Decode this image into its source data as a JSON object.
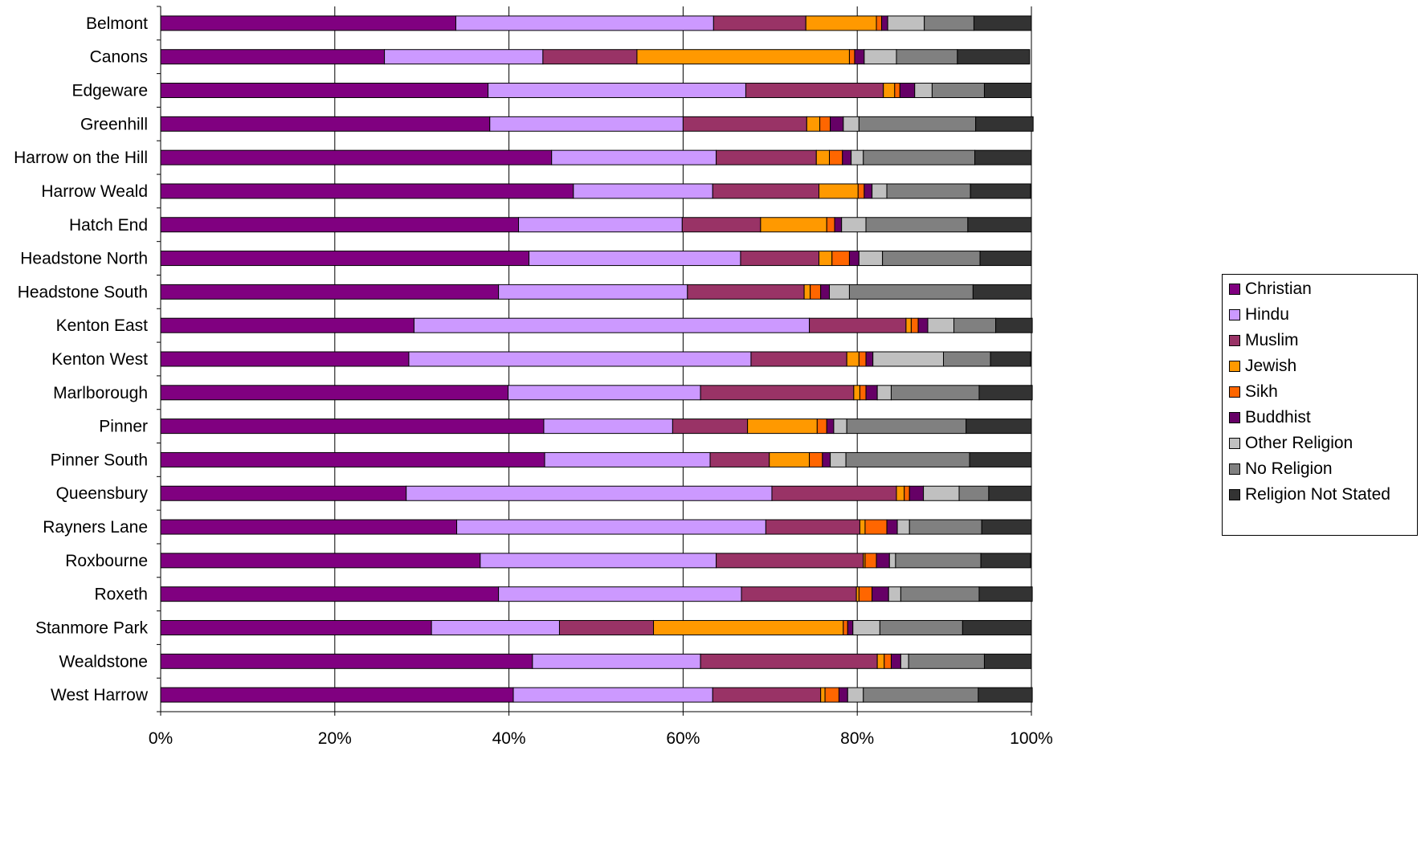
{
  "chart_data": {
    "type": "bar",
    "orientation": "horizontal",
    "stacked": "percent",
    "categories": [
      "Belmont",
      "Canons",
      "Edgeware",
      "Greenhill",
      "Harrow on the Hill",
      "Harrow Weald",
      "Hatch End",
      "Headstone North",
      "Headstone South",
      "Kenton East",
      "Kenton West",
      "Marlborough",
      "Pinner ",
      "Pinner South",
      "Queensbury",
      "Rayners Lane",
      "Roxbourne",
      "Roxeth",
      "Stanmore Park",
      "Wealdstone",
      "West Harrow"
    ],
    "series": [
      {
        "name": "Christian",
        "color": "#800080",
        "values": [
          33.9,
          25.7,
          37.6,
          37.8,
          44.9,
          47.4,
          41.1,
          42.3,
          38.8,
          29.1,
          28.5,
          39.9,
          44.0,
          44.1,
          28.2,
          34.0,
          36.7,
          38.8,
          31.1,
          42.7,
          40.5
        ]
      },
      {
        "name": "Hindu",
        "color": "#CC99FF",
        "values": [
          29.6,
          18.2,
          29.6,
          22.2,
          18.9,
          16.0,
          18.8,
          24.3,
          21.7,
          45.4,
          39.3,
          22.1,
          14.8,
          19.0,
          42.0,
          35.5,
          27.1,
          27.9,
          14.7,
          19.3,
          22.9
        ]
      },
      {
        "name": "Muslim",
        "color": "#993366",
        "values": [
          10.6,
          10.8,
          15.8,
          14.2,
          11.5,
          12.2,
          9.0,
          9.0,
          13.4,
          11.1,
          11.0,
          17.6,
          8.6,
          6.8,
          14.3,
          10.8,
          16.9,
          13.2,
          10.8,
          20.3,
          12.4
        ]
      },
      {
        "name": "Jewish",
        "color": "#FF9900",
        "values": [
          8.1,
          24.4,
          1.3,
          1.5,
          1.5,
          4.5,
          7.6,
          1.5,
          0.7,
          0.6,
          1.4,
          0.7,
          8.0,
          4.6,
          0.9,
          0.6,
          0.2,
          0.3,
          21.8,
          0.8,
          0.5
        ]
      },
      {
        "name": "Sikh",
        "color": "#FF6600",
        "values": [
          0.6,
          0.6,
          0.6,
          1.2,
          1.5,
          0.7,
          0.9,
          2.0,
          1.2,
          0.8,
          0.8,
          0.7,
          1.1,
          1.5,
          0.6,
          2.5,
          1.3,
          1.5,
          0.5,
          0.8,
          1.6
        ]
      },
      {
        "name": "Buddhist",
        "color": "#660066",
        "values": [
          0.7,
          1.1,
          1.7,
          1.5,
          1.0,
          0.9,
          0.8,
          1.1,
          1.0,
          1.1,
          0.8,
          1.3,
          0.8,
          0.9,
          1.6,
          1.2,
          1.5,
          1.9,
          0.6,
          1.1,
          1.0
        ]
      },
      {
        "name": "Other Religion",
        "color": "#C0C0C0",
        "values": [
          4.2,
          3.7,
          2.0,
          1.8,
          1.4,
          1.7,
          2.8,
          2.7,
          2.3,
          3.0,
          8.1,
          1.6,
          1.5,
          1.8,
          4.1,
          1.4,
          0.7,
          1.4,
          3.1,
          0.9,
          1.8
        ]
      },
      {
        "name": "No Religion",
        "color": "#808080",
        "values": [
          5.7,
          7.0,
          6.0,
          13.4,
          12.8,
          9.6,
          11.7,
          11.2,
          14.2,
          4.8,
          5.4,
          10.1,
          13.7,
          14.2,
          3.4,
          8.3,
          9.8,
          9.0,
          9.5,
          8.7,
          13.2
        ]
      },
      {
        "name": "Religion Not Stated",
        "color": "#333333",
        "values": [
          6.6,
          8.3,
          5.4,
          6.6,
          6.5,
          6.9,
          7.3,
          5.9,
          6.7,
          4.2,
          4.6,
          6.1,
          7.5,
          7.1,
          4.9,
          5.7,
          5.7,
          6.1,
          7.9,
          5.4,
          6.2
        ]
      }
    ],
    "xlim": [
      0,
      100
    ],
    "xticks": [
      "0%",
      "20%",
      "40%",
      "60%",
      "80%",
      "100%"
    ],
    "grid": "vertical",
    "legend_position": "right"
  }
}
